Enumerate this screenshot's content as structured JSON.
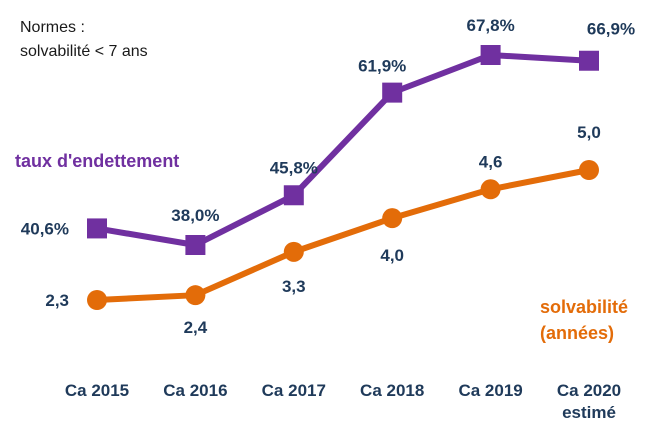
{
  "notes": [
    "Normes :",
    "solvabilité < 7 ans"
  ],
  "chart_data": {
    "type": "line",
    "categories": [
      [
        "Ca 2015"
      ],
      [
        "Ca 2016"
      ],
      [
        "Ca 2017"
      ],
      [
        "Ca 2018"
      ],
      [
        "Ca 2019"
      ],
      [
        "Ca 2020",
        "estimé"
      ]
    ],
    "series": [
      {
        "name": "taux d'endettement",
        "legend": [
          "taux d'endettement"
        ],
        "values": [
          40.6,
          38.0,
          45.8,
          61.9,
          67.8,
          66.9
        ],
        "labels": [
          "40,6%",
          "38,0%",
          "45,8%",
          "61,9%",
          "67,8%",
          "66,9%"
        ],
        "color": "#7030a0",
        "marker": "square"
      },
      {
        "name": "solvabilité (années)",
        "legend": [
          "solvabilité",
          "(années)"
        ],
        "values": [
          2.3,
          2.4,
          3.3,
          4.0,
          4.6,
          5.0
        ],
        "labels": [
          "2,3",
          "2,4",
          "3,3",
          "4,0",
          "4,6",
          "5,0"
        ],
        "color": "#e36c09",
        "marker": "circle"
      }
    ],
    "label_color": "#1f3a5a"
  }
}
